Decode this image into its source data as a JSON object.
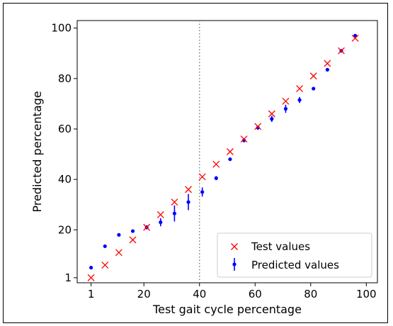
{
  "chart_data": {
    "type": "scatter",
    "xlabel": "Test gait cycle percentage",
    "ylabel": "Predicted percentage",
    "xlim": [
      -4,
      104
    ],
    "ylim": [
      -1,
      103
    ],
    "xticks": [
      1,
      20,
      40,
      60,
      80,
      100
    ],
    "yticks": [
      1,
      20,
      40,
      60,
      80,
      100
    ],
    "grid": false,
    "vline": {
      "x": 40,
      "style": "dotted",
      "color": "#808080"
    },
    "legend": {
      "placement": "lower-right"
    },
    "series": [
      {
        "name": "Test values",
        "marker": "x",
        "color": "#ff0000",
        "x": [
          1,
          6,
          11,
          16,
          21,
          26,
          31,
          36,
          41,
          46,
          51,
          56,
          61,
          66,
          71,
          76,
          81,
          86,
          91,
          96
        ],
        "y": [
          1,
          6,
          11,
          16,
          21,
          26,
          31,
          36,
          41,
          46,
          51,
          56,
          61,
          66,
          71,
          76,
          81,
          86,
          91,
          96
        ]
      },
      {
        "name": "Predicted values",
        "marker": "errorbar-point",
        "color": "#0000ff",
        "x": [
          1,
          6,
          11,
          16,
          21,
          26,
          31,
          36,
          41,
          46,
          51,
          56,
          61,
          66,
          71,
          76,
          81,
          86,
          91,
          96
        ],
        "y": [
          5,
          13.5,
          18,
          19.5,
          21,
          23,
          26.5,
          31,
          35,
          40.5,
          48,
          55.5,
          60.5,
          64,
          68,
          71.5,
          76,
          83.5,
          91,
          97
        ],
        "err": [
          0.4,
          0.4,
          0.4,
          0.4,
          0.8,
          1.6,
          3.2,
          3.2,
          1.8,
          0.8,
          0.6,
          0.8,
          0.8,
          1.2,
          1.6,
          1.2,
          0.6,
          0.6,
          0.6,
          0.6
        ]
      }
    ]
  }
}
